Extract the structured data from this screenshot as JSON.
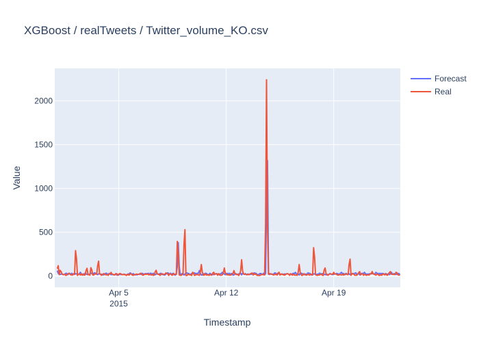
{
  "chart_data": {
    "type": "line",
    "title": "XGBoost / realTweets / Twitter_volume_KO.csv",
    "xlabel": "Timestamp",
    "ylabel": "Value",
    "x_ticks": [
      {
        "date": "2015-04-05",
        "label": "Apr 5",
        "sublabel": "2015"
      },
      {
        "date": "2015-04-12",
        "label": "Apr 12",
        "sublabel": ""
      },
      {
        "date": "2015-04-19",
        "label": "Apr 19",
        "sublabel": ""
      }
    ],
    "xlim": [
      "2015-03-31T20:00",
      "2015-04-23T08:00"
    ],
    "y_ticks": [
      0,
      500,
      1000,
      1500,
      2000
    ],
    "ylim": [
      -130,
      2370
    ],
    "grid": true,
    "legend_position": "top-right",
    "colors": {
      "forecast": "#636efa",
      "real": "#ef553b",
      "plot_bg": "#e5ecf6",
      "grid": "#ffffff"
    },
    "series": [
      {
        "name": "Forecast",
        "key": "forecast",
        "color": "#636efa",
        "baseline": 20,
        "spikes": [
          {
            "t": "2015-04-01T00:00",
            "v": 60
          },
          {
            "t": "2015-04-02T12:00",
            "v": 40
          },
          {
            "t": "2015-04-03T10:00",
            "v": 40
          },
          {
            "t": "2015-04-04T04:00",
            "v": 35
          },
          {
            "t": "2015-04-05T18:00",
            "v": 35
          },
          {
            "t": "2015-04-07T02:00",
            "v": 35
          },
          {
            "t": "2015-04-08T04:00",
            "v": 40
          },
          {
            "t": "2015-04-08T21:00",
            "v": 380
          },
          {
            "t": "2015-04-09T10:00",
            "v": 40
          },
          {
            "t": "2015-04-09T22:00",
            "v": 40
          },
          {
            "t": "2015-04-10T06:00",
            "v": 60
          },
          {
            "t": "2015-04-11T18:00",
            "v": 40
          },
          {
            "t": "2015-04-12T22:00",
            "v": 35
          },
          {
            "t": "2015-04-13T20:00",
            "v": 40
          },
          {
            "t": "2015-04-14T16:00",
            "v": 1750
          },
          {
            "t": "2015-04-15T04:00",
            "v": 40
          },
          {
            "t": "2015-04-16T12:00",
            "v": 40
          },
          {
            "t": "2015-04-17T08:00",
            "v": 40
          },
          {
            "t": "2015-04-18T02:00",
            "v": 35
          },
          {
            "t": "2015-04-19T12:00",
            "v": 40
          },
          {
            "t": "2015-04-20T10:00",
            "v": 40
          },
          {
            "t": "2015-04-21T00:00",
            "v": 40
          },
          {
            "t": "2015-04-21T18:00",
            "v": 40
          },
          {
            "t": "2015-04-22T18:00",
            "v": 40
          }
        ]
      },
      {
        "name": "Real",
        "key": "real",
        "color": "#ef553b",
        "baseline": 15,
        "spikes": [
          {
            "t": "2015-04-01T01:00",
            "v": 150
          },
          {
            "t": "2015-04-01T05:00",
            "v": 80
          },
          {
            "t": "2015-04-01T18:00",
            "v": 30
          },
          {
            "t": "2015-04-02T05:00",
            "v": 380
          },
          {
            "t": "2015-04-02T22:00",
            "v": 110
          },
          {
            "t": "2015-04-03T05:00",
            "v": 120
          },
          {
            "t": "2015-04-03T16:00",
            "v": 220
          },
          {
            "t": "2015-04-04T12:00",
            "v": 40
          },
          {
            "t": "2015-04-05T02:00",
            "v": 30
          },
          {
            "t": "2015-04-06T10:00",
            "v": 35
          },
          {
            "t": "2015-04-07T10:00",
            "v": 80
          },
          {
            "t": "2015-04-08T02:00",
            "v": 40
          },
          {
            "t": "2015-04-08T20:00",
            "v": 520
          },
          {
            "t": "2015-04-09T07:00",
            "v": 700
          },
          {
            "t": "2015-04-09T20:00",
            "v": 50
          },
          {
            "t": "2015-04-10T09:00",
            "v": 130
          },
          {
            "t": "2015-04-11T04:00",
            "v": 50
          },
          {
            "t": "2015-04-11T21:00",
            "v": 90
          },
          {
            "t": "2015-04-12T12:00",
            "v": 60
          },
          {
            "t": "2015-04-13T00:00",
            "v": 185
          },
          {
            "t": "2015-04-13T16:00",
            "v": 40
          },
          {
            "t": "2015-04-14T15:00",
            "v": 2240
          },
          {
            "t": "2015-04-15T10:00",
            "v": 50
          },
          {
            "t": "2015-04-16T18:00",
            "v": 130
          },
          {
            "t": "2015-04-17T17:00",
            "v": 425
          },
          {
            "t": "2015-04-18T10:00",
            "v": 115
          },
          {
            "t": "2015-04-19T00:00",
            "v": 40
          },
          {
            "t": "2015-04-20T01:00",
            "v": 250
          },
          {
            "t": "2015-04-20T16:00",
            "v": 60
          },
          {
            "t": "2015-04-21T12:00",
            "v": 50
          },
          {
            "t": "2015-04-22T16:00",
            "v": 60
          },
          {
            "t": "2015-04-23T02:00",
            "v": 50
          }
        ]
      }
    ]
  }
}
